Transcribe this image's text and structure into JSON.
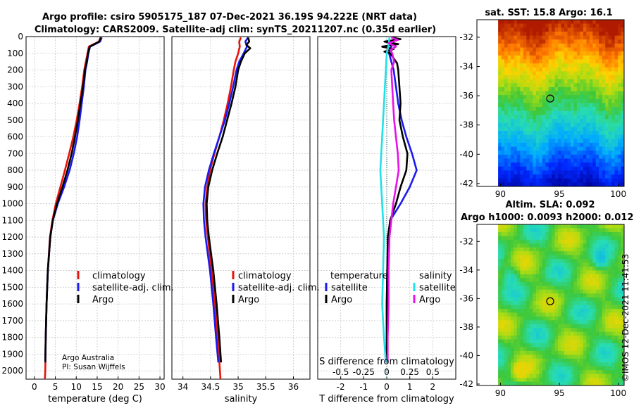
{
  "header": {
    "title_line1": "Argo profile: csiro 5905175_187 07-Dec-2021 36.19S 94.222E (NRT data)",
    "title_line2": "Climatology: CARS2009. Satellite-adj clim: synTS_20211207.nc (0.35d earlier)"
  },
  "credit": {
    "line1": "Argo Australia",
    "line2": "PI: Susan Wijffels",
    "imos": "©IMOS 12-Dec-2021 11:41:53"
  },
  "colors": {
    "climatology": "#e8140a",
    "satellite": "#1a1af0",
    "argo": "#000000",
    "sat_salinity": "#22e0e8",
    "argo_salinity": "#e812e8"
  },
  "chart_data": [
    {
      "type": "line",
      "id": "temperature",
      "title": "",
      "xlabel": "temperature (deg C)",
      "ylabel": "",
      "xlim": [
        -2,
        31
      ],
      "ylim": [
        2050,
        0
      ],
      "xticks": [
        0,
        5,
        10,
        15,
        20,
        25,
        30
      ],
      "yticks": [
        0,
        100,
        200,
        300,
        400,
        500,
        600,
        700,
        800,
        900,
        1000,
        1100,
        1200,
        1300,
        1400,
        1500,
        1600,
        1700,
        1800,
        1900,
        2000
      ],
      "grid": true,
      "legend": [
        "climatology",
        "satellite-adj. clim.",
        "Argo"
      ],
      "series": [
        {
          "name": "climatology",
          "color_key": "climatology",
          "depth": [
            5,
            30,
            60,
            100,
            150,
            200,
            300,
            400,
            500,
            600,
            700,
            800,
            900,
            1000,
            1100,
            1200,
            1400,
            1600,
            1800,
            2000,
            2050
          ],
          "values": [
            15.8,
            15.4,
            13.0,
            12.7,
            12.3,
            11.9,
            11.4,
            10.8,
            10.1,
            9.3,
            8.3,
            7.3,
            6.2,
            5.1,
            4.3,
            3.7,
            3.2,
            2.9,
            2.7,
            2.6,
            2.5
          ]
        },
        {
          "name": "satellite-adj. clim.",
          "color_key": "satellite",
          "depth": [
            5,
            30,
            60,
            100,
            150,
            200,
            300,
            400,
            500,
            600,
            700,
            800,
            900,
            1000,
            1100,
            1200,
            1400,
            1600,
            1800,
            1950
          ],
          "values": [
            16.1,
            15.7,
            13.3,
            12.9,
            12.6,
            12.2,
            11.8,
            11.3,
            10.8,
            10.2,
            9.4,
            8.4,
            7.1,
            5.6,
            4.4,
            3.8,
            3.2,
            2.9,
            2.7,
            2.6
          ]
        },
        {
          "name": "Argo",
          "color_key": "argo",
          "depth": [
            5,
            30,
            60,
            100,
            150,
            200,
            300,
            400,
            500,
            600,
            700,
            800,
            900,
            1000,
            1100,
            1200,
            1400,
            1600,
            1800,
            1950
          ],
          "values": [
            15.9,
            15.5,
            13.2,
            12.8,
            12.5,
            12.1,
            11.6,
            11.0,
            10.4,
            9.7,
            8.9,
            7.9,
            6.7,
            5.4,
            4.4,
            3.8,
            3.2,
            2.9,
            2.7,
            2.6
          ]
        }
      ]
    },
    {
      "type": "line",
      "id": "salinity",
      "title": "",
      "xlabel": "salinity",
      "ylabel": "",
      "xlim": [
        33.8,
        36.3
      ],
      "ylim": [
        2050,
        0
      ],
      "xticks": [
        34,
        34.5,
        35,
        35.5,
        36
      ],
      "xtick_labels": [
        "34",
        "34.5",
        "35",
        "35.5",
        "36"
      ],
      "grid": true,
      "legend": [
        "climatology",
        "satellite-adj. clim.",
        "Argo"
      ],
      "series": [
        {
          "name": "climatology",
          "color_key": "climatology",
          "depth": [
            5,
            30,
            60,
            100,
            150,
            200,
            300,
            400,
            500,
            600,
            700,
            800,
            900,
            1000,
            1100,
            1200,
            1400,
            1600,
            1800,
            2000,
            2050
          ],
          "values": [
            35.05,
            35.02,
            35.03,
            35.0,
            34.95,
            34.92,
            34.87,
            34.81,
            34.74,
            34.66,
            34.57,
            34.49,
            34.44,
            34.41,
            34.42,
            34.45,
            34.52,
            34.58,
            34.63,
            34.67,
            34.68
          ]
        },
        {
          "name": "satellite-adj. clim.",
          "color_key": "satellite",
          "depth": [
            5,
            30,
            60,
            100,
            150,
            200,
            300,
            400,
            500,
            600,
            700,
            800,
            900,
            1000,
            1100,
            1200,
            1400,
            1600,
            1800,
            1950
          ],
          "values": [
            35.18,
            35.13,
            35.16,
            35.1,
            35.02,
            34.97,
            34.91,
            34.84,
            34.76,
            34.66,
            34.56,
            34.47,
            34.4,
            34.37,
            34.38,
            34.41,
            34.49,
            34.55,
            34.6,
            34.64
          ]
        },
        {
          "name": "Argo",
          "color_key": "argo",
          "depth": [
            5,
            30,
            50,
            70,
            100,
            150,
            200,
            300,
            400,
            500,
            600,
            700,
            800,
            900,
            1000,
            1100,
            1200,
            1400,
            1600,
            1800,
            1950
          ],
          "values": [
            35.18,
            35.2,
            35.15,
            35.22,
            35.12,
            35.05,
            35.0,
            34.95,
            34.88,
            34.8,
            34.72,
            34.62,
            34.53,
            34.46,
            34.43,
            34.44,
            34.47,
            34.55,
            34.61,
            34.66,
            34.69
          ]
        }
      ]
    },
    {
      "type": "line",
      "id": "difference",
      "title": "",
      "xlabel": "T difference from climatology",
      "xlabel_top": "S difference from climatology",
      "ylabel": "",
      "xlim": [
        -3,
        3
      ],
      "ylim": [
        2050,
        0
      ],
      "xticks": [
        -2,
        -1,
        0,
        1,
        2
      ],
      "xticks_s": [
        -0.5,
        -0.25,
        0,
        0.25,
        0.5
      ],
      "xtick_labels_s": [
        "-0.5",
        "-0.25",
        "0",
        "0.25",
        "0.5"
      ],
      "grid": true,
      "legend_left_title": "temperature",
      "legend_left": [
        "satellite",
        "Argo"
      ],
      "legend_right_title": "salinity",
      "legend_right": [
        "satellite",
        "Argo"
      ],
      "series": [
        {
          "name": "temperature satellite",
          "color_key": "satellite",
          "depth": [
            5,
            20,
            40,
            60,
            80,
            100,
            150,
            200,
            300,
            400,
            500,
            600,
            700,
            800,
            900,
            1000,
            1100,
            1200,
            1400,
            1600,
            1800,
            1950
          ],
          "values": [
            0.4,
            0.3,
            0.25,
            0.2,
            0.15,
            0.1,
            0.2,
            0.3,
            0.4,
            0.5,
            0.65,
            0.85,
            1.1,
            1.3,
            1.0,
            0.6,
            0.15,
            0.08,
            0.02,
            0.0,
            0.0,
            0.0
          ]
        },
        {
          "name": "temperature Argo",
          "color_key": "argo",
          "depth": [
            5,
            15,
            30,
            45,
            60,
            75,
            90,
            100,
            130,
            160,
            200,
            300,
            400,
            500,
            600,
            700,
            800,
            900,
            1000,
            1100,
            1200,
            1400,
            1600,
            1800,
            1950
          ],
          "values": [
            0.2,
            0.6,
            -0.1,
            0.5,
            -0.2,
            0.3,
            -0.1,
            0.15,
            0.3,
            0.45,
            0.5,
            0.55,
            0.6,
            0.55,
            0.7,
            0.9,
            0.85,
            0.6,
            0.4,
            0.15,
            0.05,
            0.02,
            0.0,
            0.0,
            0.0
          ]
        },
        {
          "name": "salinity satellite",
          "color_key": "sat_salinity",
          "depth": [
            5,
            50,
            100,
            200,
            300,
            400,
            500,
            600,
            700,
            800,
            900,
            1000,
            1100,
            1200,
            1400,
            1600,
            1800,
            1950
          ],
          "values": [
            0.03,
            0.02,
            0.0,
            -0.01,
            -0.02,
            -0.03,
            -0.04,
            -0.05,
            -0.06,
            -0.07,
            -0.06,
            -0.05,
            -0.04,
            -0.03,
            -0.04,
            -0.05,
            -0.03,
            -0.01
          ]
        },
        {
          "name": "salinity Argo",
          "color_key": "argo_salinity",
          "depth": [
            5,
            20,
            40,
            60,
            80,
            100,
            150,
            200,
            300,
            400,
            500,
            600,
            700,
            800,
            900,
            1000,
            1100,
            1200,
            1400,
            1600,
            1800,
            1950
          ],
          "values": [
            0.05,
            0.12,
            0.02,
            0.1,
            0.04,
            0.06,
            0.08,
            0.05,
            0.06,
            0.07,
            0.08,
            0.1,
            0.12,
            0.13,
            0.1,
            0.07,
            0.05,
            0.03,
            0.02,
            0.02,
            0.01,
            0.01
          ]
        }
      ]
    },
    {
      "type": "heatmap",
      "id": "sst-map",
      "title": "sat. SST: 15.8 Argo: 16.1",
      "xlim": [
        88,
        100.5
      ],
      "ylim": [
        -42.2,
        -30.8
      ],
      "xticks": [
        90,
        95,
        100
      ],
      "yticks": [
        -32,
        -34,
        -36,
        -38,
        -40,
        -42
      ],
      "data_extent_x": [
        89.8,
        100.5
      ],
      "marker": {
        "lon": 94.222,
        "lat": -36.19
      }
    },
    {
      "type": "heatmap",
      "id": "sla-map",
      "title": "Altim. SLA: 0.092",
      "subtitle": "Argo h1000: 0.0093 h2000: 0.012",
      "xlim": [
        88,
        100.5
      ],
      "ylim": [
        -42.1,
        -30.8
      ],
      "xticks": [
        90,
        95,
        100
      ],
      "yticks": [
        -32,
        -34,
        -36,
        -38,
        -40,
        -42
      ],
      "data_extent_x": [
        89.8,
        100.5
      ],
      "marker": {
        "lon": 94.222,
        "lat": -36.19
      }
    }
  ]
}
